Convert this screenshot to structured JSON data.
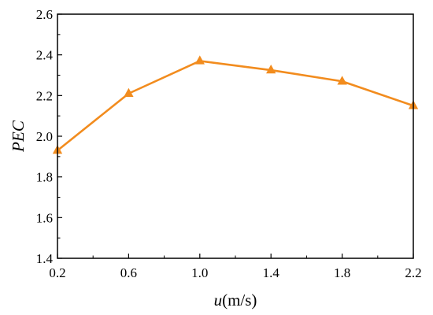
{
  "chart_data": {
    "type": "line",
    "xlabel_var": "u",
    "xlabel_unit": "(m/s)",
    "ylabel": "PEC",
    "xlim": [
      0.2,
      2.2
    ],
    "ylim": [
      1.4,
      2.6
    ],
    "xticks": [
      0.2,
      0.6,
      1.0,
      1.4,
      1.8,
      2.2
    ],
    "xtick_labels": [
      "0.2",
      "0.6",
      "1.0",
      "1.4",
      "1.8",
      "2.2"
    ],
    "yticks": [
      1.4,
      1.6,
      1.8,
      2.0,
      2.2,
      2.4,
      2.6
    ],
    "ytick_labels": [
      "1.4",
      "1.6",
      "1.8",
      "2.0",
      "2.2",
      "2.4",
      "2.6"
    ],
    "grid": false,
    "marker": "triangle",
    "color": "#F28C1E",
    "series": [
      {
        "x": [
          0.2,
          0.6,
          1.0,
          1.4,
          1.8,
          2.2
        ],
        "values": [
          1.93,
          2.21,
          2.37,
          2.325,
          2.27,
          2.15
        ]
      }
    ]
  }
}
